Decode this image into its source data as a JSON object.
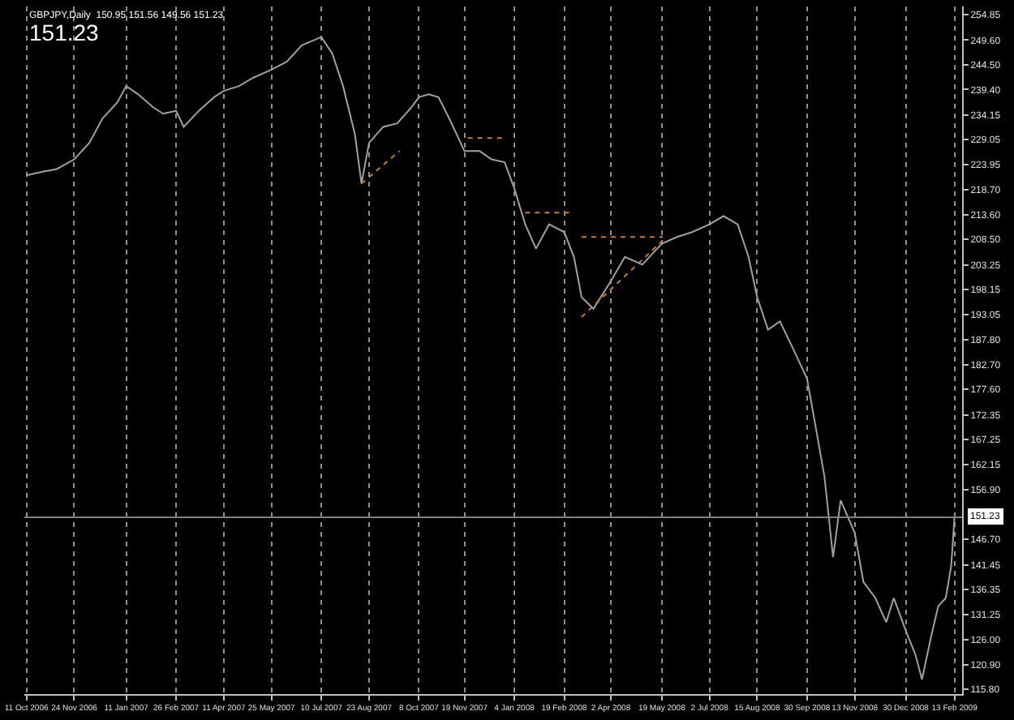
{
  "chart_data": {
    "type": "line",
    "annotations": [
      "GBPJPY,Daily  150.95 151.56 149.56 151.23",
      "151.23"
    ],
    "x": [
      "2006-10-11",
      "2006-10-25",
      "2006-11-08",
      "2006-11-24",
      "2006-12-08",
      "2006-12-20",
      "2007-01-03",
      "2007-01-11",
      "2007-01-22",
      "2007-02-05",
      "2007-02-14",
      "2007-02-26",
      "2007-03-05",
      "2007-03-19",
      "2007-04-02",
      "2007-04-11",
      "2007-04-25",
      "2007-05-08",
      "2007-05-25",
      "2007-06-08",
      "2007-06-22",
      "2007-07-10",
      "2007-07-20",
      "2007-07-30",
      "2007-08-10",
      "2007-08-16",
      "2007-08-23",
      "2007-09-05",
      "2007-09-18",
      "2007-10-01",
      "2007-10-08",
      "2007-10-17",
      "2007-10-26",
      "2007-11-05",
      "2007-11-19",
      "2007-12-03",
      "2007-12-14",
      "2007-12-26",
      "2008-01-04",
      "2008-01-14",
      "2008-01-24",
      "2008-02-05",
      "2008-02-19",
      "2008-02-28",
      "2008-03-06",
      "2008-03-17",
      "2008-04-02",
      "2008-04-15",
      "2008-05-01",
      "2008-05-19",
      "2008-06-02",
      "2008-06-16",
      "2008-07-02",
      "2008-07-15",
      "2008-07-28",
      "2008-08-07",
      "2008-08-15",
      "2008-08-25",
      "2008-09-05",
      "2008-09-16",
      "2008-09-30",
      "2008-10-08",
      "2008-10-16",
      "2008-10-24",
      "2008-10-31",
      "2008-11-13",
      "2008-11-21",
      "2008-12-02",
      "2008-12-12",
      "2008-12-19",
      "2008-12-30",
      "2009-01-08",
      "2009-01-14",
      "2009-01-22",
      "2009-01-29",
      "2009-02-05",
      "2009-02-10",
      "2009-02-13"
    ],
    "series": [
      {
        "color": "#a0a0a0",
        "line_style": "solid",
        "values": [
          221.7,
          222.4,
          223,
          225,
          228.4,
          233.4,
          236.8,
          240.1,
          238.4,
          235.7,
          234.4,
          235,
          231.7,
          235,
          237.8,
          239.1,
          240.1,
          241.8,
          243.5,
          245.1,
          248.5,
          250.2,
          246.8,
          240.1,
          230.1,
          220,
          228.4,
          231.7,
          232.4,
          235.7,
          237.8,
          238.4,
          237.8,
          233.4,
          226.7,
          226.7,
          225,
          224.4,
          219,
          211.6,
          206.6,
          211.6,
          210,
          204.9,
          196.6,
          194.2,
          199.9,
          204.9,
          203.3,
          207.6,
          209,
          210,
          211.6,
          213.3,
          211.6,
          204.9,
          196.6,
          189.9,
          191.6,
          186.5,
          179.8,
          169.8,
          159.7,
          143,
          154.7,
          148,
          137.9,
          134.6,
          129.6,
          134.6,
          127.9,
          122.9,
          117.8,
          126.2,
          132.9,
          134.6,
          141.3,
          151.23
        ]
      },
      {
        "color": "#c08040",
        "line_style": "dotted",
        "x": [
          "2007-08-16",
          "2007-09-20"
        ],
        "values": [
          220,
          226.7
        ]
      },
      {
        "color": "#c08040",
        "line_style": "dotted",
        "x": [
          "2007-11-22",
          "2007-12-24"
        ],
        "values": [
          229.4,
          229.4
        ]
      },
      {
        "color": "#c08040",
        "line_style": "dotted",
        "x": [
          "2008-01-14",
          "2008-02-28"
        ],
        "values": [
          214,
          214
        ]
      },
      {
        "color": "#c08040",
        "line_style": "dotted",
        "x": [
          "2008-03-06",
          "2008-05-20"
        ],
        "values": [
          209,
          209
        ]
      },
      {
        "color": "#c08040",
        "line_style": "dotted",
        "x": [
          "2008-03-06",
          "2008-05-20"
        ],
        "values": [
          192.5,
          208.3
        ]
      }
    ],
    "xlim": [
      "2006-10-09",
      "2009-02-20"
    ],
    "xticks": [
      {
        "value": "2006-10-11",
        "label": "11 Oct 2006"
      },
      {
        "value": "2006-11-24",
        "label": "24 Nov 2006"
      },
      {
        "value": "2007-01-11",
        "label": "11 Jan 2007"
      },
      {
        "value": "2007-02-26",
        "label": "26 Feb 2007"
      },
      {
        "value": "2007-04-11",
        "label": "11 Apr 2007"
      },
      {
        "value": "2007-05-25",
        "label": "25 May 2007"
      },
      {
        "value": "2007-07-10",
        "label": "10 Jul 2007"
      },
      {
        "value": "2007-08-23",
        "label": "23 Aug 2007"
      },
      {
        "value": "2007-10-08",
        "label": "8 Oct 2007"
      },
      {
        "value": "2007-11-19",
        "label": "19 Nov 2007"
      },
      {
        "value": "2008-01-04",
        "label": "4 Jan 2008"
      },
      {
        "value": "2008-02-19",
        "label": "19 Feb 2008"
      },
      {
        "value": "2008-04-02",
        "label": "2 Apr 2008"
      },
      {
        "value": "2008-05-19",
        "label": "19 May 2008"
      },
      {
        "value": "2008-07-02",
        "label": "2 Jul 2008"
      },
      {
        "value": "2008-08-15",
        "label": "15 Aug 2008"
      },
      {
        "value": "2008-09-30",
        "label": "30 Sep 2008"
      },
      {
        "value": "2008-11-13",
        "label": "13 Nov 2008"
      },
      {
        "value": "2008-12-30",
        "label": "30 Dec 2008"
      },
      {
        "value": "2009-02-13",
        "label": "13 Feb 2009"
      }
    ],
    "ylim": [
      114.8,
      256.5
    ],
    "yticks": [
      {
        "value": 115.8,
        "label": "115.80"
      },
      {
        "value": 120.9,
        "label": "120.90"
      },
      {
        "value": 126,
        "label": "126.00"
      },
      {
        "value": 131.25,
        "label": "131.25"
      },
      {
        "value": 136.35,
        "label": "136.35"
      },
      {
        "value": 141.45,
        "label": "141.45"
      },
      {
        "value": 146.7,
        "label": "146.70"
      },
      {
        "value": 156.9,
        "label": "156.90"
      },
      {
        "value": 162.15,
        "label": "162.15"
      },
      {
        "value": 167.25,
        "label": "167.25"
      },
      {
        "value": 172.35,
        "label": "172.35"
      },
      {
        "value": 177.6,
        "label": "177.60"
      },
      {
        "value": 182.7,
        "label": "182.70"
      },
      {
        "value": 187.8,
        "label": "187.80"
      },
      {
        "value": 193.05,
        "label": "193.05"
      },
      {
        "value": 198.15,
        "label": "198.15"
      },
      {
        "value": 203.25,
        "label": "203.25"
      },
      {
        "value": 208.5,
        "label": "208.50"
      },
      {
        "value": 213.6,
        "label": "213.60"
      },
      {
        "value": 218.7,
        "label": "218.70"
      },
      {
        "value": 223.95,
        "label": "223.95"
      },
      {
        "value": 229.05,
        "label": "229.05"
      },
      {
        "value": 234.15,
        "label": "234.15"
      },
      {
        "value": 239.4,
        "label": "239.40"
      },
      {
        "value": 244.5,
        "label": "244.50"
      },
      {
        "value": 249.6,
        "label": "249.60"
      },
      {
        "value": 254.85,
        "label": "254.85"
      }
    ],
    "ref_lines": [
      {
        "axis": "y",
        "value": 151.23,
        "label": "151.23",
        "color": "#808080"
      }
    ],
    "grid": "x"
  }
}
